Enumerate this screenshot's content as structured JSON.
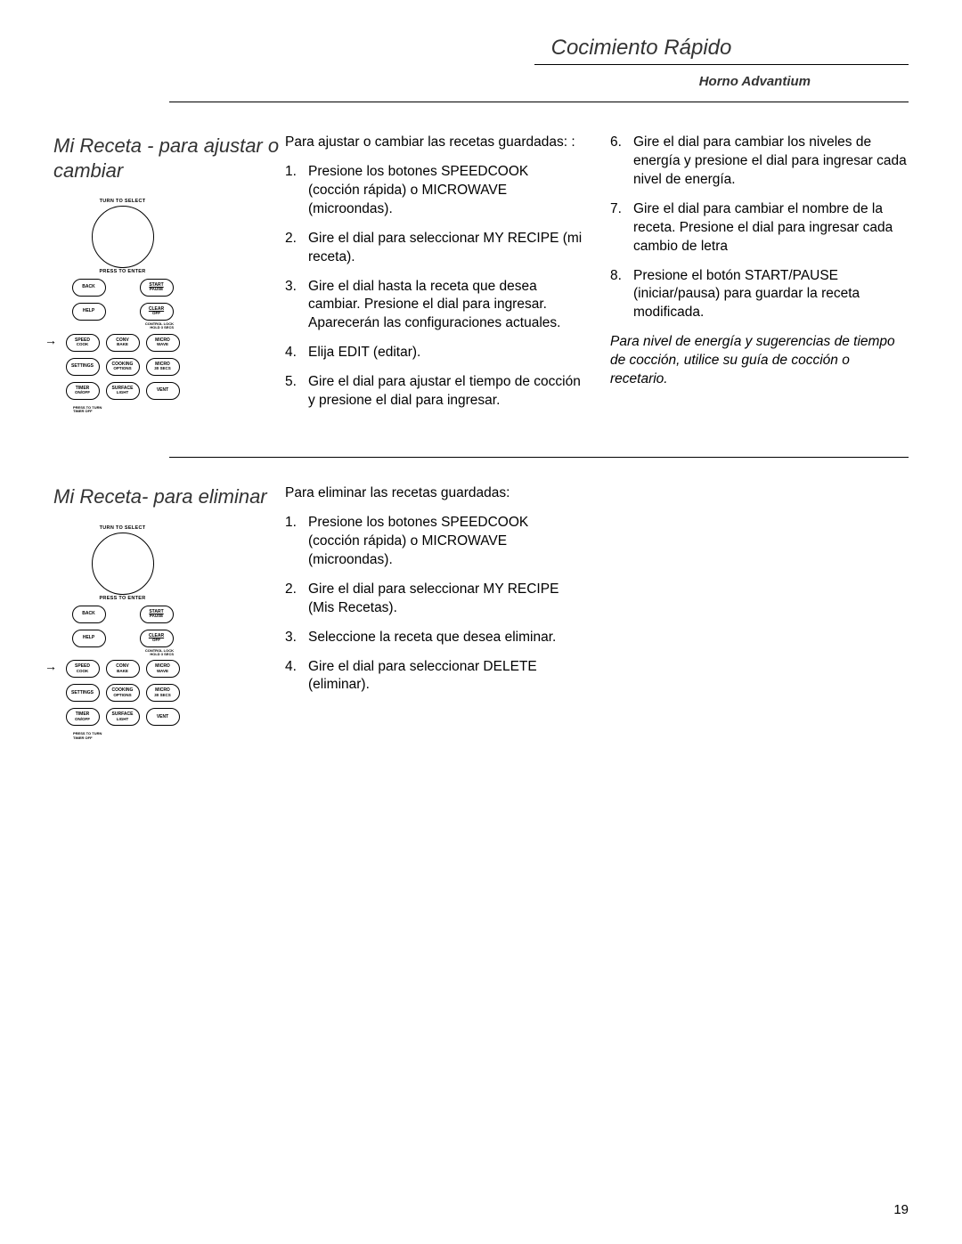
{
  "header": {
    "title": "Cocimiento Rápido",
    "product": "Horno Advantium"
  },
  "page_number": "19",
  "section1": {
    "heading": "Mi Receta - para ajustar o cambiar",
    "intro": "Para ajustar o cambiar las recetas guardadas: :",
    "col1_items": [
      "Presione los botones SPEEDCOOK (cocción rápida) o MICROWAVE (microondas).",
      "Gire el dial para seleccionar MY RECIPE (mi receta).",
      "Gire el dial hasta la receta que desea cambiar.  Presione el dial para ingresar.  Aparecerán las configuraciones actuales.",
      "Elija EDIT (editar).",
      "Gire el dial para ajustar el tiempo de cocción y presione el dial para ingresar."
    ],
    "col2_items": [
      "Gire el dial para cambiar los niveles de energía y presione el dial para ingresar cada nivel de energía.",
      "Gire el dial para cambiar el nombre de la receta.  Presione el dial para ingresar cada cambio de letra",
      "Presione el botón START/PAUSE (iniciar/pausa) para guardar la receta modificada."
    ],
    "note": "Para nivel de energía y sugerencias de tiempo de cocción, utilice su guía de cocción o recetario."
  },
  "section2": {
    "heading": "Mi Receta- para eliminar",
    "intro": "Para eliminar las recetas guardadas:",
    "col1_items": [
      "Presione los botones SPEEDCOOK (cocción rápida) o MICROWAVE (microondas).",
      "Gire el dial para seleccionar MY RECIPE (Mis Recetas).",
      "Seleccione la receta que desea eliminar.",
      "Gire el dial para seleccionar DELETE  (eliminar)."
    ]
  },
  "panel": {
    "dial_top": "TURN TO SELECT",
    "dial_bottom": "PRESS TO ENTER",
    "buttons": {
      "back": "BACK",
      "start": "START",
      "start2": "PAUSE",
      "help": "HELP",
      "clear": "CLEAR",
      "clear2": "OFF",
      "clear_under1": "CONTROL LOCK",
      "clear_under2": "HOLD 3 SECS",
      "speed": "SPEED",
      "speed2": "COOK",
      "conv": "CONV",
      "conv2": "BAKE",
      "micro": "MICRO",
      "micro2": "WAVE",
      "settings": "SETTINGS",
      "cooking": "COOKING",
      "cooking2": "OPTIONS",
      "micro30": "MICRO",
      "micro30b": "30 SECS",
      "timer": "TIMER",
      "timer2": "ON/OFF",
      "timer_under1": "PRESS TO TURN",
      "timer_under2": "TIMER OFF",
      "surface": "SURFACE",
      "surface2": "LIGHT",
      "vent": "VENT"
    }
  }
}
